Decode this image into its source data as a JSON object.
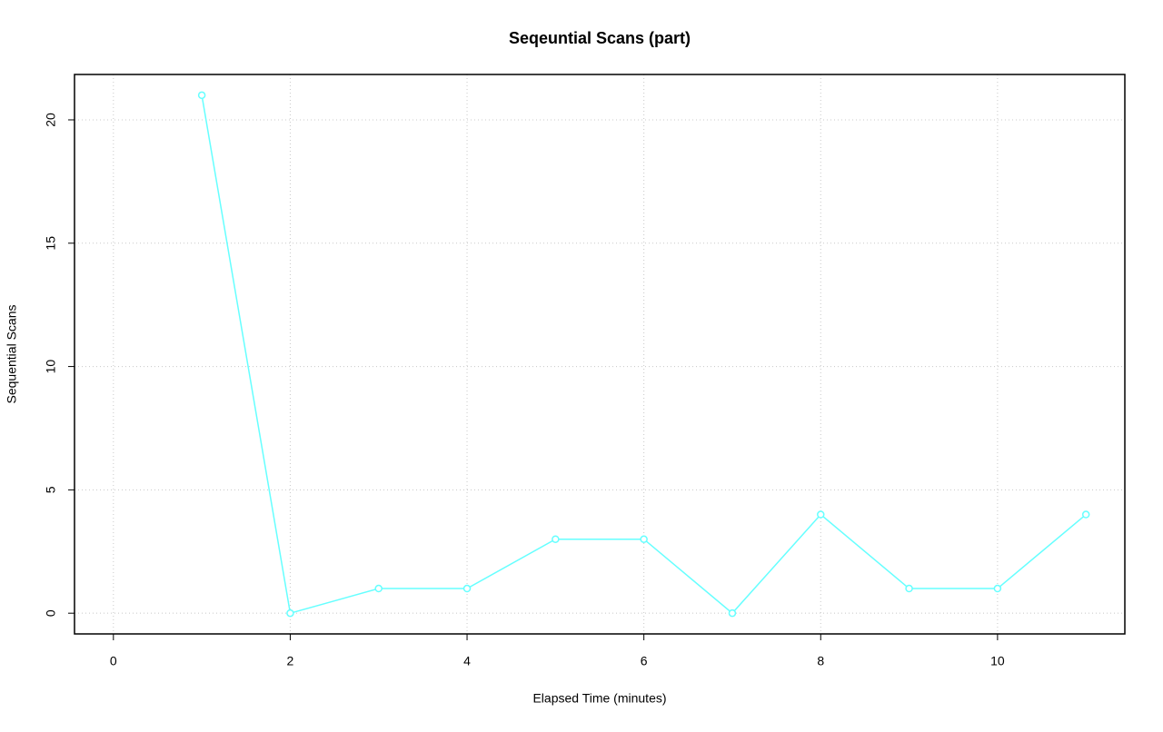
{
  "chart_data": {
    "type": "line",
    "title": "Seqeuntial Scans (part)",
    "x_label": "Elapsed Time (minutes)",
    "y_label": "Sequential Scans",
    "x": [
      1,
      2,
      3,
      4,
      5,
      6,
      7,
      8,
      9,
      10,
      11
    ],
    "series": [
      {
        "color": "#66ffff",
        "values": [
          21,
          0,
          1,
          1,
          3,
          3,
          0,
          4,
          1,
          1,
          4
        ]
      }
    ],
    "xlim": [
      -0.44,
      11.44
    ],
    "ylim": [
      -0.84,
      21.84
    ],
    "xticks": [
      0,
      2,
      4,
      6,
      8,
      10
    ],
    "yticks": [
      0,
      5,
      10,
      15,
      20
    ],
    "grid": true
  }
}
